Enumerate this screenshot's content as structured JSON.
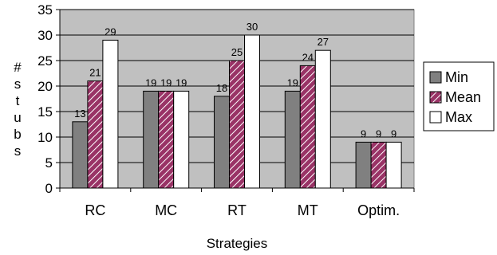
{
  "chart_data": {
    "type": "bar",
    "categories": [
      "RC",
      "MC",
      "RT",
      "MT",
      "Optim."
    ],
    "series": [
      {
        "name": "Min",
        "values": [
          13,
          19,
          18,
          19,
          9
        ],
        "fill": "gray"
      },
      {
        "name": "Mean",
        "values": [
          21,
          19,
          25,
          24,
          9
        ],
        "fill": "hatch"
      },
      {
        "name": "Max",
        "values": [
          29,
          19,
          30,
          27,
          9
        ],
        "fill": "white"
      }
    ],
    "title": "",
    "xlabel": "Strategies",
    "ylabel": "#stubs",
    "ylim": [
      0,
      35
    ],
    "yticks": [
      0,
      5,
      10,
      15,
      20,
      25,
      30,
      35
    ],
    "grid": true,
    "legend_position": "right",
    "colors": {
      "plot_background": "#c0c0c0",
      "min_fill": "#808080",
      "mean_fill": "#993366",
      "mean_hatch": "#ffffff",
      "max_fill": "#ffffff",
      "gridline": "#000000"
    }
  }
}
